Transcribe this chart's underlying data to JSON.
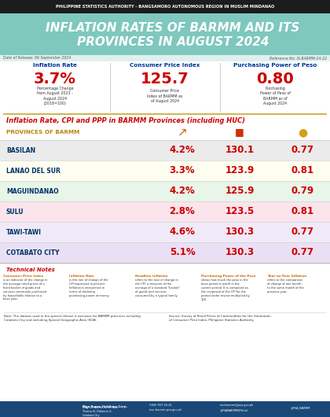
{
  "top_bar_text": "PHILIPPINE STATISTICS AUTHORITY - BANGSAMORO AUTONOMOUS REGION IN MUSLIM MINDANAO",
  "main_title_line1": "INFLATION RATES OF BARMM AND ITS",
  "main_title_line2": "PROVINCES IN AUGUST 2024",
  "header_bg": "#7ec8be",
  "date_text": "Date of Release: 06 September 2024",
  "ref_text": "Reference No: IS-BARMM-24-22",
  "summary_labels": [
    "Inflation Rate",
    "Consumer Price Index",
    "Purchasing Power of Peso"
  ],
  "summary_values": [
    "3.7%",
    "125.7",
    "0.80"
  ],
  "summary_sublabels": [
    "Percentage Change\nfrom August 2023 -\nAugust 2024\n(2018=100)",
    "Consumer Price\nIndex of BARMM as\nof August 2024",
    "Purchasing\nPower of Peso of\nBARMM as of\nAugust 2024"
  ],
  "table_title": "Inflation Rate, CPI and PPP in BARMM Provinces (including HUC)",
  "col_header": "PROVINCES OF BARMM",
  "provinces": [
    "BASILAN",
    "LANAO DEL SUR",
    "MAGUINDANAO",
    "SULU",
    "TAWI-TAWI",
    "COTABATO CITY"
  ],
  "inflation": [
    "4.2%",
    "3.3%",
    "4.2%",
    "2.8%",
    "4.6%",
    "5.1%"
  ],
  "cpi": [
    "130.1",
    "123.9",
    "125.9",
    "123.5",
    "130.3",
    "130.3"
  ],
  "ppp": [
    "0.77",
    "0.81",
    "0.79",
    "0.81",
    "0.77",
    "0.77"
  ],
  "row_colors": [
    "#ebebeb",
    "#fefef0",
    "#e8f5e9",
    "#fce4ec",
    "#f0eaf8",
    "#eae0f5"
  ],
  "tech_title": "Technical Notes",
  "tech_headers": [
    "Consumer Price Index",
    "Inflation Rate",
    "Headline Inflation",
    "Purchasing Power of the Peso",
    "Year-on-Year Inflation"
  ],
  "tech_bodies": [
    "is an indicator of the change in\nthe average retail prices of a\nfixed basket of goods and\nservices commonly purchased\nby households relative to a\nbase year.",
    "is the rate of change of the\nCPI expressed in percent.\nInflation is interpreted in\nterms of declining\npurchasing power of money.",
    "refers to the rate of change in\nthe CPI, a measure of the\naverage of a standard \"basket\"\nof goods and services\nconsumed by a typical family.",
    "shows how much the peso in the\nbase period is worth in the\ncurrent period. It is computed as\nthe reciprocal of the CPI for the\nperiod under review multiplied by\n100.",
    "refers to the comparison\nof change of one month\nto the same month of the\nprevious year."
  ],
  "note_text": "Note: The dataset used in the special release is exclusive for BARMM provinces including\nCotabato City and excluding Special Geographic Area (SGA).",
  "source_text": "Source: Survey of Retail Prices of Commodities for the Generation\nof Consumer Price Index, Philippine Statistics Authority",
  "red_color": "#cc0000",
  "gold_color": "#b8860b",
  "blue_label": "#003399",
  "province_color": "#003366",
  "orange_tech": "#cc6600"
}
